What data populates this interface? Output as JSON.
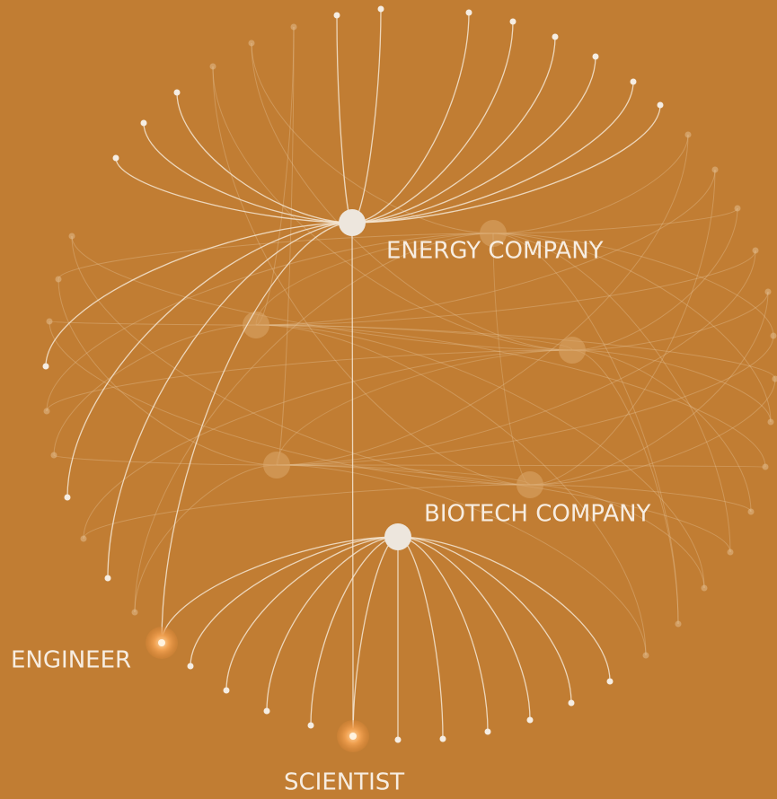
{
  "nodes": [
    {
      "label": "ENERGY COMPANY"
    },
    {
      "label": "BIOTECH COMPANY"
    },
    {
      "label": "ENGINEER"
    },
    {
      "label": "SCIENTIST"
    }
  ]
}
